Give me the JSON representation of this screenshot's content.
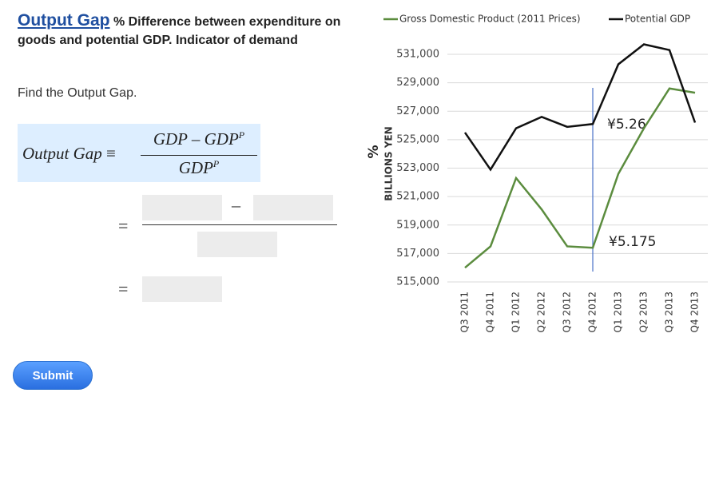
{
  "header": {
    "title": "Output Gap",
    "description": "% Difference between expenditure on goods and potential GDP. Indicator of demand"
  },
  "prompt": "Find the Output Gap.",
  "formula": {
    "lhs": "Output Gap",
    "equiv": "≡",
    "numerator": "GDP – GDP",
    "numerator_sup": "P",
    "denominator": "GDP",
    "denominator_sup": "P"
  },
  "answer": {
    "equals": "=",
    "minus": "–"
  },
  "submit": "Submit",
  "chart_data": {
    "type": "line",
    "y_label_unit": "%",
    "ylabel": "BILLIONS YEN",
    "categories": [
      "Q3 2011",
      "Q4 2011",
      "Q1 2012",
      "Q2 2012",
      "Q3 2012",
      "Q4 2012",
      "Q1 2013",
      "Q2 2013",
      "Q3 2013",
      "Q4 2013"
    ],
    "series": [
      {
        "name": "Gross Domestic Product (2011 Prices)",
        "color": "#5b8c3e",
        "values": [
          516000,
          517500,
          522300,
          520100,
          517500,
          517400,
          522600,
          525800,
          528600,
          528300
        ]
      },
      {
        "name": "Potential GDP",
        "color": "#111111",
        "values": [
          525500,
          522900,
          525800,
          526600,
          525900,
          526100,
          530300,
          531700,
          531300,
          526200
        ]
      }
    ],
    "annotations": [
      "¥5.26",
      "¥5.175"
    ],
    "ylim": [
      515000,
      531000
    ],
    "yticks": [
      {
        "value": 515000,
        "label": "515,000"
      },
      {
        "value": 517000,
        "label": "517,000"
      },
      {
        "value": 519000,
        "label": "519,000"
      },
      {
        "value": 521000,
        "label": "521,000"
      },
      {
        "value": 523000,
        "label": "523,000"
      },
      {
        "value": 525000,
        "label": "525,000"
      },
      {
        "value": 527000,
        "label": "527,000"
      },
      {
        "value": 529000,
        "label": "529,000"
      },
      {
        "value": 531000,
        "label": "531,000"
      }
    ],
    "grid": true
  }
}
